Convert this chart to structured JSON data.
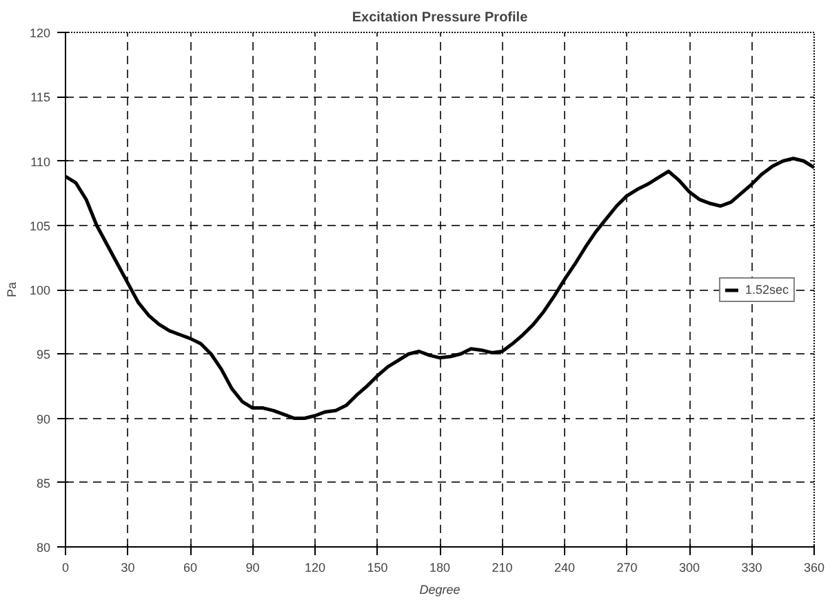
{
  "chart_data": {
    "type": "line",
    "title": "Excitation Pressure Profile",
    "xlabel": "Degree",
    "ylabel": "Pa",
    "x": [
      0,
      5,
      10,
      15,
      20,
      25,
      30,
      35,
      40,
      45,
      50,
      55,
      60,
      65,
      70,
      75,
      80,
      85,
      90,
      95,
      100,
      105,
      110,
      115,
      120,
      125,
      130,
      135,
      140,
      145,
      150,
      155,
      160,
      165,
      170,
      175,
      180,
      185,
      190,
      195,
      200,
      205,
      210,
      215,
      220,
      225,
      230,
      235,
      240,
      245,
      250,
      255,
      260,
      265,
      270,
      275,
      280,
      285,
      290,
      295,
      300,
      305,
      310,
      315,
      320,
      325,
      330,
      335,
      340,
      345,
      350,
      355,
      360
    ],
    "series": [
      {
        "name": "1.52sec",
        "color": "#000000",
        "values": [
          108.8,
          108.3,
          107,
          105,
          103.5,
          102,
          100.5,
          99,
          98,
          97.3,
          96.8,
          96.5,
          96.2,
          95.8,
          95,
          93.8,
          92.3,
          91.3,
          90.8,
          90.8,
          90.6,
          90.3,
          90,
          90,
          90.2,
          90.5,
          90.6,
          91,
          91.8,
          92.5,
          93.3,
          94,
          94.5,
          95,
          95.2,
          94.9,
          94.7,
          94.8,
          95,
          95.4,
          95.3,
          95.1,
          95.2,
          95.8,
          96.5,
          97.3,
          98.3,
          99.5,
          100.8,
          102,
          103.3,
          104.5,
          105.5,
          106.5,
          107.3,
          107.8,
          108.2,
          108.7,
          109.2,
          108.5,
          107.6,
          107,
          106.7,
          106.5,
          106.8,
          107.5,
          108.2,
          109,
          109.6,
          110,
          110.2,
          110,
          109.5
        ]
      }
    ],
    "xlim": [
      0,
      360
    ],
    "ylim": [
      80,
      120
    ],
    "xticks": [
      0,
      30,
      60,
      90,
      120,
      150,
      180,
      210,
      240,
      270,
      300,
      330,
      360
    ],
    "yticks": [
      80,
      85,
      90,
      95,
      100,
      105,
      110,
      115,
      120
    ],
    "grid": true,
    "legend": "right",
    "line_style": "solid"
  }
}
